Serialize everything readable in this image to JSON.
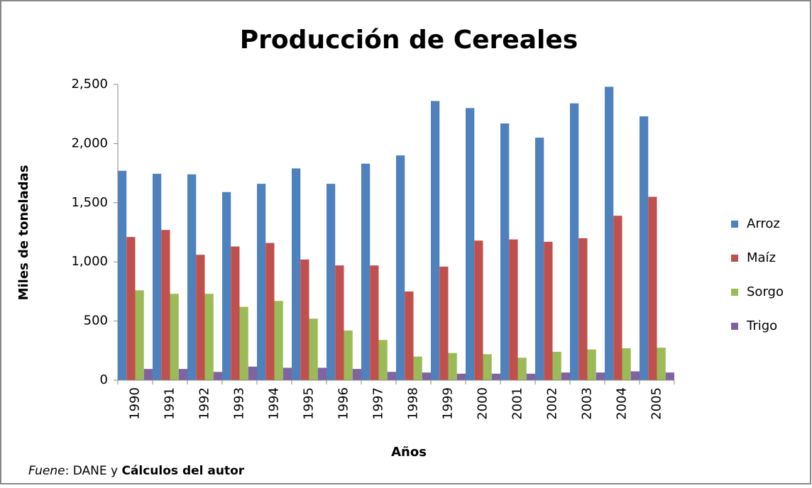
{
  "chart_data": {
    "type": "bar",
    "title": "Producción de Cereales",
    "y_label": "Miles de toneladas",
    "x_label": "Años",
    "source": [
      "Fuene",
      ": DANE y ",
      "Cálculos del autor"
    ],
    "categories": [
      "1990",
      "1991",
      "1992",
      "1993",
      "1994",
      "1995",
      "1996",
      "1997",
      "1998",
      "1999",
      "2000",
      "2001",
      "2002",
      "2003",
      "2004",
      "2005"
    ],
    "series": [
      {
        "name": "Arroz",
        "color": "#4f81bd",
        "values": [
          1770,
          1745,
          1740,
          1590,
          1660,
          1790,
          1660,
          1830,
          1900,
          2360,
          2300,
          2170,
          2050,
          2340,
          2480,
          2230
        ]
      },
      {
        "name": "Maíz",
        "color": "#c0504d",
        "values": [
          1210,
          1270,
          1060,
          1130,
          1160,
          1020,
          970,
          970,
          750,
          960,
          1180,
          1190,
          1170,
          1200,
          1390,
          1550
        ]
      },
      {
        "name": "Sorgo",
        "color": "#9bbb59",
        "values": [
          760,
          730,
          730,
          620,
          670,
          520,
          420,
          340,
          200,
          230,
          220,
          190,
          240,
          260,
          270,
          275
        ]
      },
      {
        "name": "Trigo",
        "color": "#8064a2",
        "values": [
          95,
          95,
          70,
          115,
          105,
          105,
          95,
          70,
          65,
          55,
          55,
          55,
          65,
          65,
          75,
          65
        ]
      }
    ],
    "ylim": [
      0,
      2500
    ],
    "yticks": [
      0,
      500,
      {
        "value": 1000,
        "label": "1,000"
      },
      {
        "value": 1500,
        "label": "1,500"
      },
      {
        "value": 2000,
        "label": "2,000"
      },
      {
        "value": 2500,
        "label": "2,500"
      }
    ],
    "legend": "right"
  }
}
